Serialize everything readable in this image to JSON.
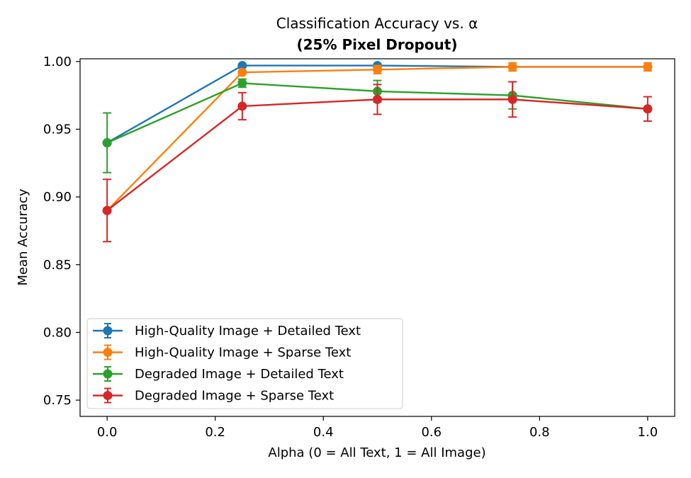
{
  "chart_data": {
    "type": "line",
    "title": "Classification Accuracy vs. α",
    "subtitle": "(25% Pixel Dropout)",
    "xlabel": "Alpha (0 = All Text, 1 = All Image)",
    "ylabel": "Mean Accuracy",
    "xlim": [
      -0.05,
      1.05
    ],
    "ylim": [
      0.738,
      1.002
    ],
    "xticks": [
      0.0,
      0.2,
      0.4,
      0.6,
      0.8,
      1.0
    ],
    "xtick_labels": [
      "0.0",
      "0.2",
      "0.4",
      "0.6",
      "0.8",
      "1.0"
    ],
    "yticks": [
      0.75,
      0.8,
      0.85,
      0.9,
      0.95,
      1.0
    ],
    "ytick_labels": [
      "0.75",
      "0.80",
      "0.85",
      "0.90",
      "0.95",
      "1.00"
    ],
    "grid": false,
    "legend_position": "lower-left",
    "x": [
      0.0,
      0.25,
      0.5,
      0.75,
      1.0
    ],
    "series": [
      {
        "name": "High-Quality Image + Detailed Text",
        "color": "#1f77b4",
        "values": [
          0.94,
          0.997,
          0.997,
          0.996,
          0.996
        ],
        "errors": [
          0.0,
          0.0,
          0.0,
          0.0,
          0.0
        ]
      },
      {
        "name": "High-Quality Image + Sparse Text",
        "color": "#ff7f0e",
        "values": [
          0.89,
          0.992,
          0.994,
          0.996,
          0.996
        ],
        "errors": [
          0.0,
          0.0,
          0.003,
          0.003,
          0.003
        ]
      },
      {
        "name": "Degraded Image + Detailed Text",
        "color": "#2ca02c",
        "values": [
          0.94,
          0.984,
          0.978,
          0.975,
          0.965
        ],
        "errors": [
          0.022,
          0.003,
          0.008,
          0.01,
          0.0
        ]
      },
      {
        "name": "Degraded Image + Sparse Text",
        "color": "#d62728",
        "values": [
          0.89,
          0.967,
          0.972,
          0.972,
          0.965
        ],
        "errors": [
          0.023,
          0.01,
          0.011,
          0.013,
          0.009
        ]
      }
    ]
  }
}
